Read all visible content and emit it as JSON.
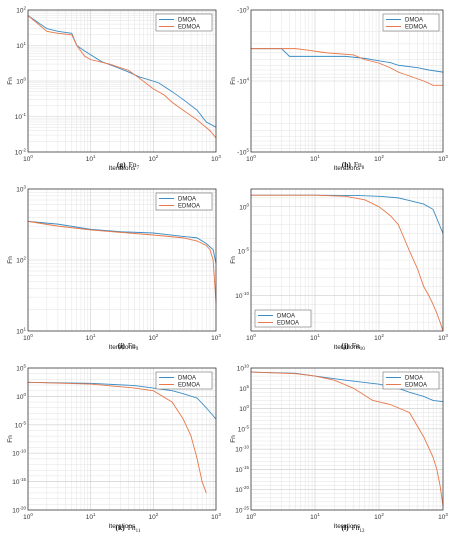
{
  "colors": {
    "DMOA": "#3c8dc4",
    "EDMOA": "#e8784a",
    "grid": "#e3e3e3",
    "axis": "#262626"
  },
  "chart_data": [
    {
      "type": "line",
      "panel": "(g) Fn7",
      "caption_label": "(g)",
      "caption_fn": "Fn",
      "caption_sub": "7",
      "xlabel": "Iterations",
      "ylabel": "Fn",
      "xscale": "log",
      "yscale": "log",
      "xlim": [
        1,
        1000
      ],
      "ylim": [
        0.01,
        100
      ],
      "xticks": [
        1,
        10,
        100,
        1000
      ],
      "xtick_labels": [
        "10^0",
        "10^1",
        "10^2",
        "10^3"
      ],
      "yticks": [
        0.01,
        0.1,
        1,
        10,
        100
      ],
      "ytick_labels": [
        "10^-2",
        "10^-1",
        "10^0",
        "10^1",
        "10^2"
      ],
      "legend_position": "top-right",
      "grid": true,
      "series": [
        {
          "name": "DMOA",
          "x": [
            1,
            2,
            3,
            5,
            6,
            8,
            15,
            25,
            40,
            60,
            120,
            200,
            300,
            500,
            700,
            1000
          ],
          "y": [
            70,
            30,
            25,
            22,
            10,
            7,
            3.5,
            2.5,
            1.8,
            1.3,
            0.9,
            0.5,
            0.3,
            0.15,
            0.07,
            0.05
          ]
        },
        {
          "name": "EDMOA",
          "x": [
            1,
            2,
            3,
            5,
            6,
            8,
            10,
            20,
            40,
            60,
            100,
            150,
            200,
            300,
            500,
            800,
            1000
          ],
          "y": [
            70,
            25,
            22,
            20,
            10,
            5,
            4,
            3,
            2,
            1.2,
            0.6,
            0.4,
            0.25,
            0.15,
            0.08,
            0.04,
            0.025
          ]
        }
      ]
    },
    {
      "type": "line",
      "panel": "(h) Fn8",
      "caption_label": "(h)",
      "caption_fn": "Fn",
      "caption_sub": "8",
      "xlabel": "Iterations",
      "ylabel": "Fn",
      "xscale": "log",
      "yscale": "neglog",
      "xlim": [
        1,
        1000
      ],
      "ylim": [
        -100000,
        -1000
      ],
      "xticks": [
        1,
        10,
        100,
        1000
      ],
      "xtick_labels": [
        "10^0",
        "10^1",
        "10^2",
        "10^3"
      ],
      "yticks": [
        -1000,
        -10000,
        -100000
      ],
      "ytick_labels": [
        "-10^3",
        "-10^4",
        "-10^5"
      ],
      "legend_position": "top-right",
      "grid": true,
      "series": [
        {
          "name": "DMOA",
          "x": [
            1,
            3,
            4,
            30,
            60,
            100,
            150,
            200,
            400,
            600,
            1000
          ],
          "y": [
            -3500,
            -3500,
            -4500,
            -4500,
            -4800,
            -5200,
            -5500,
            -6000,
            -6500,
            -7000,
            -7500
          ]
        },
        {
          "name": "EDMOA",
          "x": [
            1,
            5,
            8,
            15,
            40,
            60,
            100,
            150,
            200,
            300,
            500,
            700,
            1000
          ],
          "y": [
            -3500,
            -3500,
            -3700,
            -4000,
            -4300,
            -5000,
            -5600,
            -6500,
            -7500,
            -8500,
            -10000,
            -11500,
            -11500
          ]
        }
      ]
    },
    {
      "type": "line",
      "panel": "(i) Fn9",
      "caption_label": "(i)",
      "caption_fn": "Fn",
      "caption_sub": "9",
      "xlabel": "Iterations",
      "ylabel": "Fn",
      "xscale": "log",
      "yscale": "log",
      "xlim": [
        1,
        1000
      ],
      "ylim": [
        10,
        1000
      ],
      "xticks": [
        1,
        10,
        100,
        1000
      ],
      "xtick_labels": [
        "10^0",
        "10^1",
        "10^2",
        "10^3"
      ],
      "yticks": [
        10,
        100,
        1000
      ],
      "ytick_labels": [
        "10^1",
        "10^2",
        "10^3"
      ],
      "legend_position": "top-right",
      "grid": true,
      "series": [
        {
          "name": "DMOA",
          "x": [
            1,
            3,
            10,
            30,
            100,
            300,
            500,
            700,
            900,
            1000
          ],
          "y": [
            350,
            320,
            270,
            250,
            240,
            215,
            205,
            170,
            140,
            90
          ]
        },
        {
          "name": "EDMOA",
          "x": [
            1,
            3,
            10,
            30,
            100,
            300,
            500,
            700,
            800,
            900,
            950,
            1000
          ],
          "y": [
            350,
            300,
            265,
            245,
            225,
            205,
            185,
            160,
            140,
            100,
            50,
            25
          ]
        }
      ]
    },
    {
      "type": "line",
      "panel": "(j) Fn10",
      "caption_label": "(j)",
      "caption_fn": "Fn",
      "caption_sub": "10",
      "xlabel": "Iterations",
      "ylabel": "Fn",
      "xscale": "log",
      "yscale": "log",
      "xlim": [
        1,
        1000
      ],
      "ylim": [
        1e-14,
        100
      ],
      "xticks": [
        1,
        10,
        100,
        1000
      ],
      "xtick_labels": [
        "10^0",
        "10^1",
        "10^2",
        "10^3"
      ],
      "yticks": [
        1e-10,
        1e-05,
        1
      ],
      "ytick_labels": [
        "10^-10",
        "10^-5",
        "10^0"
      ],
      "legend_position": "bottom-left",
      "grid": true,
      "series": [
        {
          "name": "DMOA",
          "x": [
            1,
            10,
            50,
            100,
            200,
            300,
            500,
            700,
            1000
          ],
          "y": [
            20,
            20,
            18,
            15,
            10,
            5,
            2,
            0.5,
            0.001
          ]
        },
        {
          "name": "EDMOA",
          "x": [
            1,
            10,
            30,
            60,
            100,
            150,
            200,
            300,
            400,
            500,
            600,
            700,
            800,
            900,
            1000
          ],
          "y": [
            20,
            20,
            15,
            6,
            1,
            0.1,
            0.01,
            1e-05,
            1e-07,
            1e-09,
            1e-10,
            1e-11,
            1e-12,
            1e-13,
            1e-14
          ]
        }
      ]
    },
    {
      "type": "line",
      "panel": "(k) Fn11",
      "caption_label": "(k)",
      "caption_fn": "Fn",
      "caption_sub": "11",
      "xlabel": "Iterations",
      "ylabel": "Fn",
      "xscale": "log",
      "yscale": "log",
      "xlim": [
        1,
        1000
      ],
      "ylim": [
        1e-20,
        100000
      ],
      "xticks": [
        1,
        10,
        100,
        1000
      ],
      "xtick_labels": [
        "10^0",
        "10^1",
        "10^2",
        "10^3"
      ],
      "yticks": [
        1e-20,
        1e-15,
        1e-10,
        1e-05,
        1,
        100000
      ],
      "ytick_labels": [
        "10^-20",
        "10^-15",
        "10^-10",
        "10^-5",
        "10^0",
        "10^5"
      ],
      "legend_position": "top-right",
      "grid": true,
      "series": [
        {
          "name": "DMOA",
          "x": [
            1,
            10,
            50,
            100,
            200,
            300,
            500,
            700,
            1000
          ],
          "y": [
            300,
            200,
            80,
            30,
            10,
            3,
            0.5,
            0.01,
            0.0001
          ]
        },
        {
          "name": "EDMOA",
          "x": [
            1,
            10,
            50,
            100,
            200,
            300,
            400,
            500,
            600,
            700
          ],
          "y": [
            300,
            150,
            30,
            10,
            0.1,
            0.0001,
            1e-07,
            1e-11,
            1e-15,
            1e-17
          ]
        }
      ]
    },
    {
      "type": "line",
      "panel": "(l) Fn12",
      "caption_label": "(l)",
      "caption_fn": "Fn",
      "caption_sub": "12",
      "xlabel": "Iterations",
      "ylabel": "Fn",
      "xscale": "log",
      "yscale": "log",
      "xlim": [
        1,
        1000
      ],
      "ylim": [
        1e-25,
        10000000000
      ],
      "xticks": [
        1,
        10,
        100,
        1000
      ],
      "xtick_labels": [
        "10^0",
        "10^1",
        "10^2",
        "10^3"
      ],
      "yticks": [
        1e-25,
        1e-20,
        1e-15,
        1e-10,
        1e-05,
        1,
        100000,
        10000000000
      ],
      "ytick_labels": [
        "10^-25",
        "10^-20",
        "10^-15",
        "10^-10",
        "10^-5",
        "10^0",
        "10^5",
        "10^10"
      ],
      "legend_position": "top-right",
      "grid": true,
      "series": [
        {
          "name": "DMOA",
          "x": [
            1,
            5,
            10,
            30,
            100,
            200,
            300,
            500,
            700,
            1000
          ],
          "y": [
            1000000000,
            500000000,
            100000000,
            10000000,
            1000000,
            100000,
            10000,
            1000,
            100,
            50
          ]
        },
        {
          "name": "EDMOA",
          "x": [
            1,
            5,
            10,
            20,
            40,
            80,
            150,
            300,
            500,
            700,
            800,
            900,
            1000
          ],
          "y": [
            1000000000,
            400000000,
            100000000,
            10000000,
            100000,
            100,
            10,
            0.1,
            1e-07,
            1e-12,
            1e-15,
            1e-19,
            1e-24
          ]
        }
      ]
    }
  ]
}
